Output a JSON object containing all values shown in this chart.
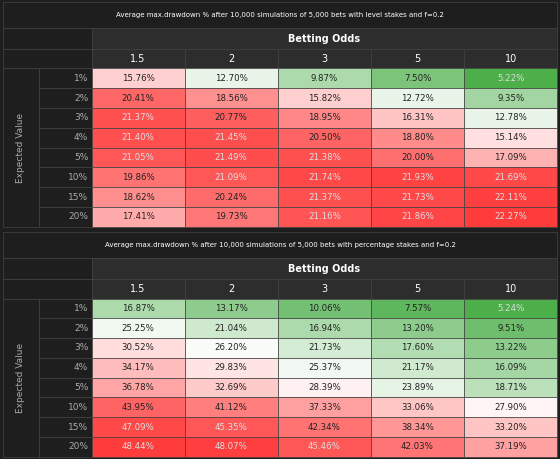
{
  "table1": {
    "title": "Average max.drawdown % after 10,000 simulations of 5,000 bets with level stakes and f=0.2",
    "col_labels": [
      "1.5",
      "2",
      "3",
      "5",
      "10"
    ],
    "row_labels": [
      "1%",
      "2%",
      "3%",
      "4%",
      "5%",
      "10%",
      "15%",
      "20%"
    ],
    "values": [
      [
        15.76,
        12.7,
        9.87,
        7.5,
        5.22
      ],
      [
        20.41,
        18.56,
        15.82,
        12.72,
        9.35
      ],
      [
        21.37,
        20.77,
        18.95,
        16.31,
        12.78
      ],
      [
        21.4,
        21.45,
        20.5,
        18.8,
        15.14
      ],
      [
        21.05,
        21.49,
        21.38,
        20.0,
        17.09
      ],
      [
        19.86,
        21.09,
        21.74,
        21.93,
        21.69
      ],
      [
        18.62,
        20.24,
        21.37,
        21.73,
        22.11
      ],
      [
        17.41,
        19.73,
        21.16,
        21.86,
        22.27
      ]
    ],
    "text_values": [
      [
        "15.76%",
        "12.70%",
        "9.87%",
        "7.50%",
        "5.22%"
      ],
      [
        "20.41%",
        "18.56%",
        "15.82%",
        "12.72%",
        "9.35%"
      ],
      [
        "21.37%",
        "20.77%",
        "18.95%",
        "16.31%",
        "12.78%"
      ],
      [
        "21.40%",
        "21.45%",
        "20.50%",
        "18.80%",
        "15.14%"
      ],
      [
        "21.05%",
        "21.49%",
        "21.38%",
        "20.00%",
        "17.09%"
      ],
      [
        "19.86%",
        "21.09%",
        "21.74%",
        "21.93%",
        "21.69%"
      ],
      [
        "18.62%",
        "20.24%",
        "21.37%",
        "21.73%",
        "22.11%"
      ],
      [
        "17.41%",
        "19.73%",
        "21.16%",
        "21.86%",
        "22.27%"
      ]
    ]
  },
  "table2": {
    "title": "Average max.drawdown % after 10,000 simulations of 5,000 bets with percentage stakes and f=0.2",
    "col_labels": [
      "1.5",
      "2",
      "3",
      "5",
      "10"
    ],
    "row_labels": [
      "1%",
      "2%",
      "3%",
      "4%",
      "5%",
      "10%",
      "15%",
      "20%"
    ],
    "values": [
      [
        16.87,
        13.17,
        10.06,
        7.57,
        5.24
      ],
      [
        25.25,
        21.04,
        16.94,
        13.2,
        9.51
      ],
      [
        30.52,
        26.2,
        21.73,
        17.6,
        13.22
      ],
      [
        34.17,
        29.83,
        25.37,
        21.17,
        16.09
      ],
      [
        36.78,
        32.69,
        28.39,
        23.89,
        18.71
      ],
      [
        43.95,
        41.12,
        37.33,
        33.06,
        27.9
      ],
      [
        47.09,
        45.35,
        42.34,
        38.34,
        33.2
      ],
      [
        48.44,
        48.07,
        45.46,
        42.03,
        37.19
      ]
    ],
    "text_values": [
      [
        "16.87%",
        "13.17%",
        "10.06%",
        "7.57%",
        "5.24%"
      ],
      [
        "25.25%",
        "21.04%",
        "16.94%",
        "13.20%",
        "9.51%"
      ],
      [
        "30.52%",
        "26.20%",
        "21.73%",
        "17.60%",
        "13.22%"
      ],
      [
        "34.17%",
        "29.83%",
        "25.37%",
        "21.17%",
        "16.09%"
      ],
      [
        "36.78%",
        "32.69%",
        "28.39%",
        "23.89%",
        "18.71%"
      ],
      [
        "43.95%",
        "41.12%",
        "37.33%",
        "33.06%",
        "27.90%"
      ],
      [
        "47.09%",
        "45.35%",
        "42.34%",
        "38.34%",
        "33.20%"
      ],
      [
        "48.44%",
        "48.07%",
        "45.46%",
        "42.03%",
        "37.19%"
      ]
    ]
  },
  "bg_color": "#1e1e1e",
  "header_bg": "#2d2d2d",
  "title_color": "#ffffff",
  "row_label_color": "#cccccc",
  "col_header_color": "#ffffff"
}
